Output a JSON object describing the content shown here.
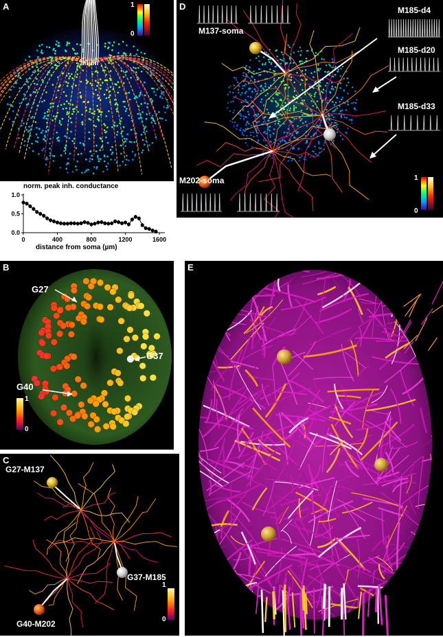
{
  "panels": {
    "a": {
      "label": "A",
      "scale_max": "1",
      "scale_min": "0"
    },
    "plot": {
      "title": "norm. peak inh. conductance",
      "xlabel": "distance from soma (µm)",
      "x_ticks": [
        "0",
        "400",
        "800",
        "1200",
        "1600"
      ],
      "y_ticks": [
        "0.0",
        "0.5",
        "1.0"
      ]
    },
    "b": {
      "label": "B",
      "callouts": [
        "G27",
        "G37",
        "G40"
      ],
      "scale_max": "1",
      "scale_min": "0"
    },
    "c": {
      "label": "C",
      "callouts": [
        "G27-M137",
        "G37-M185",
        "G40-M202"
      ],
      "scale_max": "1",
      "scale_min": "0"
    },
    "d": {
      "label": "D",
      "callouts": [
        "M137-soma",
        "M185-d4",
        "M185-d20",
        "M185-d33",
        "M202-soma"
      ],
      "scale_max": "1",
      "scale_min": "0"
    },
    "e": {
      "label": "E"
    }
  },
  "colors": {
    "background": "#000000",
    "soma_gold": "#d8c040",
    "soma_orange": "#f07018",
    "soma_white": "#e8e8e8",
    "dendrite_magenta": "#d020c0",
    "dendrite_yellow": "#f0d020"
  },
  "chart_data": {
    "type": "scatter",
    "title": "norm. peak inh. conductance",
    "xlabel": "distance from soma (µm)",
    "ylabel": "",
    "xlim": [
      0,
      1600
    ],
    "ylim": [
      0,
      1
    ],
    "x": [
      0,
      40,
      80,
      120,
      160,
      200,
      240,
      280,
      320,
      360,
      400,
      440,
      480,
      520,
      560,
      600,
      640,
      680,
      720,
      760,
      800,
      840,
      880,
      920,
      960,
      1000,
      1040,
      1080,
      1120,
      1160,
      1200,
      1240,
      1280,
      1320,
      1360,
      1400,
      1440,
      1480,
      1520,
      1560
    ],
    "y": [
      0.8,
      0.77,
      0.7,
      0.63,
      0.55,
      0.5,
      0.45,
      0.38,
      0.33,
      0.3,
      0.27,
      0.25,
      0.24,
      0.24,
      0.25,
      0.25,
      0.24,
      0.25,
      0.28,
      0.26,
      0.22,
      0.24,
      0.27,
      0.28,
      0.25,
      0.24,
      0.25,
      0.3,
      0.28,
      0.25,
      0.27,
      0.22,
      0.35,
      0.42,
      0.38,
      0.2,
      0.12,
      0.1,
      0.06,
      0.03
    ]
  }
}
